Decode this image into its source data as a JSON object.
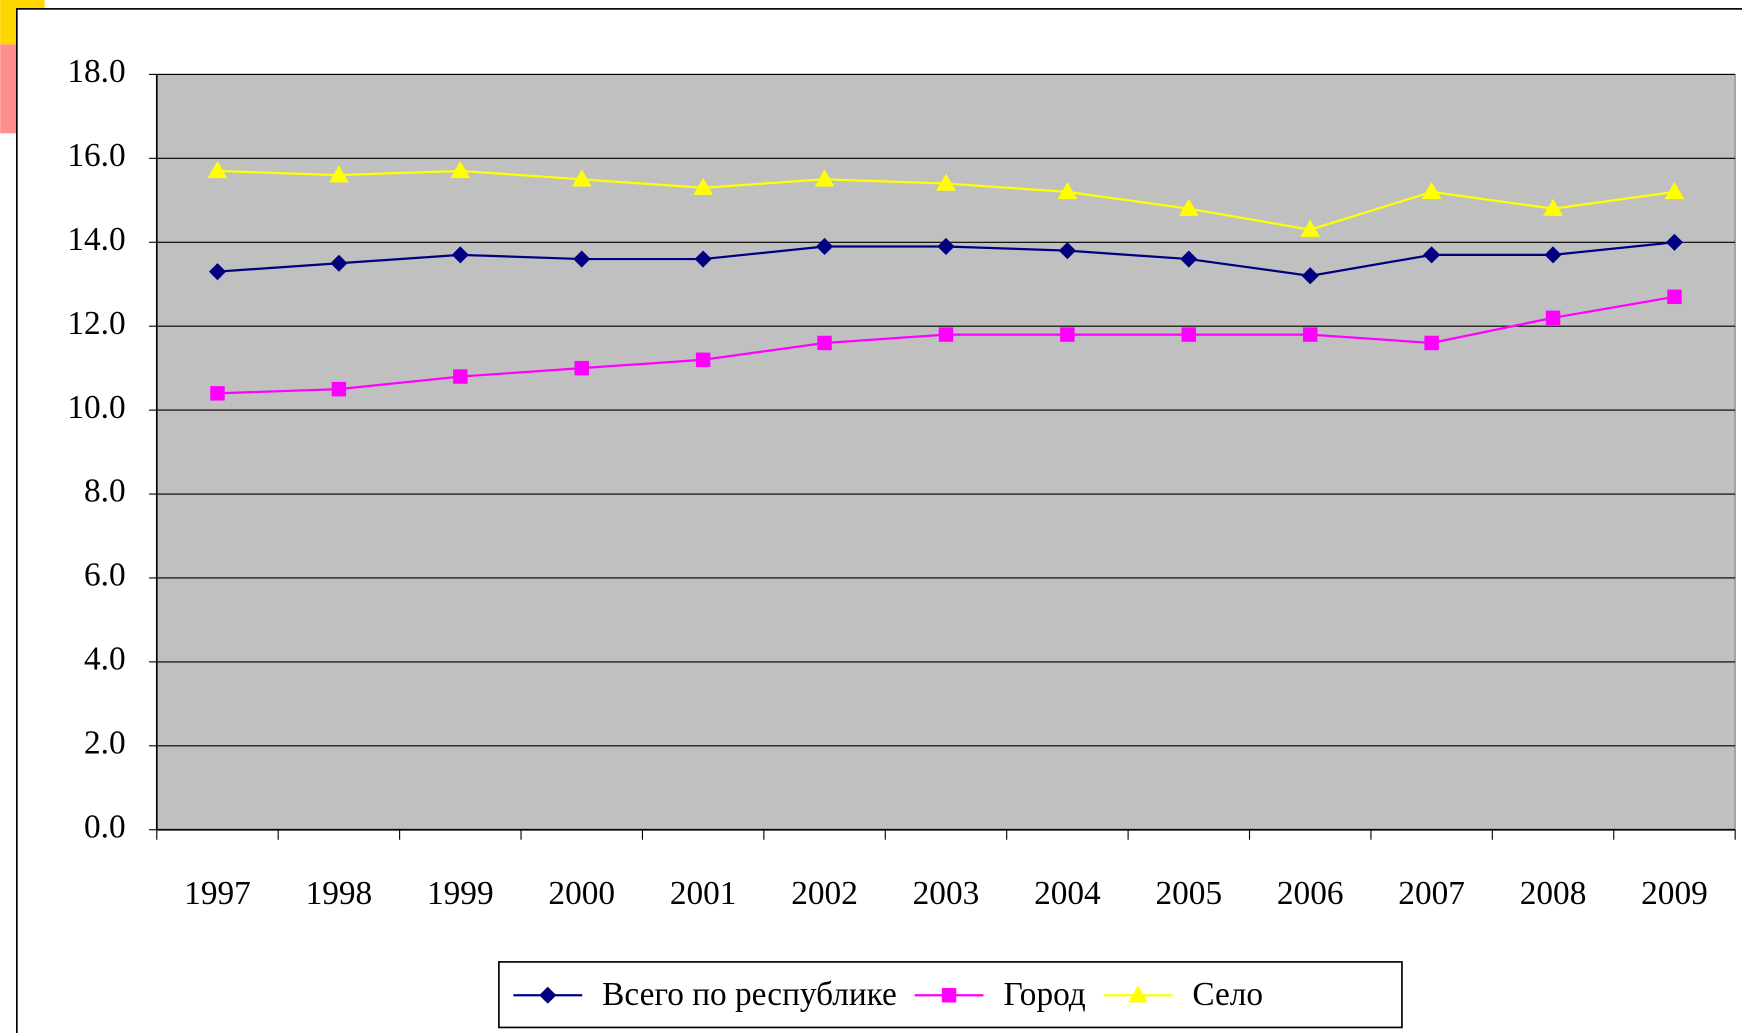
{
  "chart_data": {
    "type": "line",
    "categories": [
      "1997",
      "1998",
      "1999",
      "2000",
      "2001",
      "2002",
      "2003",
      "2004",
      "2005",
      "2006",
      "2007",
      "2008",
      "2009"
    ],
    "series": [
      {
        "name": "Всего по республике",
        "color": "#000080",
        "marker": "diamond",
        "values": [
          13.3,
          13.5,
          13.7,
          13.6,
          13.6,
          13.9,
          13.9,
          13.8,
          13.6,
          13.2,
          13.7,
          13.7,
          14.0
        ]
      },
      {
        "name": "Город",
        "color": "#ff00ff",
        "marker": "square",
        "values": [
          10.4,
          10.5,
          10.8,
          11.0,
          11.2,
          11.6,
          11.8,
          11.8,
          11.8,
          11.8,
          11.6,
          12.2,
          12.7
        ]
      },
      {
        "name": "Село",
        "color": "#ffff00",
        "marker": "triangle",
        "values": [
          15.7,
          15.6,
          15.7,
          15.5,
          15.3,
          15.5,
          15.4,
          15.2,
          14.8,
          14.3,
          15.2,
          14.8,
          15.2
        ]
      }
    ],
    "ylim": [
      0,
      18
    ],
    "yticks": [
      {
        "value": 0,
        "label": "0.0"
      },
      {
        "value": 2,
        "label": "2.0"
      },
      {
        "value": 4,
        "label": "4.0"
      },
      {
        "value": 6,
        "label": "6.0"
      },
      {
        "value": 8,
        "label": "8.0"
      },
      {
        "value": 10,
        "label": "10.0"
      },
      {
        "value": 12,
        "label": "12.0"
      },
      {
        "value": 14,
        "label": "14.0"
      },
      {
        "value": 16,
        "label": "16.0"
      },
      {
        "value": 18,
        "label": "18.0"
      }
    ],
    "grid": true,
    "legend": "bottom",
    "plot_background": "#c0c0c0"
  }
}
